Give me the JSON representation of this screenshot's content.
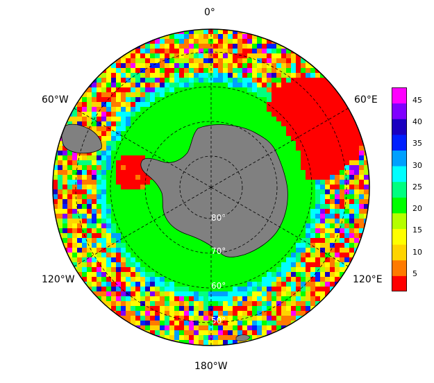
{
  "map": {
    "projection": "south-polar-stereographic",
    "lon_labels": {
      "top": "0°",
      "upper_right": "60°E",
      "lower_right": "120°E",
      "bottom": "180°W",
      "lower_left": "120°W",
      "upper_left": "60°W"
    },
    "lat_labels": [
      "80°",
      "70°",
      "60°",
      "50°"
    ],
    "colors": {
      "land": "#808080",
      "coast": "#000000",
      "grid": "#000000",
      "lat_label": "#ffffff"
    }
  },
  "colorbar": {
    "min": 1,
    "max": 48,
    "ticks": [
      "45",
      "40",
      "35",
      "30",
      "25",
      "20",
      "15",
      "10",
      "5"
    ],
    "tick_values": [
      45,
      40,
      35,
      30,
      25,
      20,
      15,
      10,
      5
    ],
    "colors": [
      "#ff0000",
      "#ff7a00",
      "#ffd400",
      "#ffff00",
      "#b4ff00",
      "#00ff00",
      "#00ff80",
      "#00ffff",
      "#00a0ff",
      "#0020ff",
      "#1a00c0",
      "#8000ff",
      "#ff00ff"
    ]
  }
}
